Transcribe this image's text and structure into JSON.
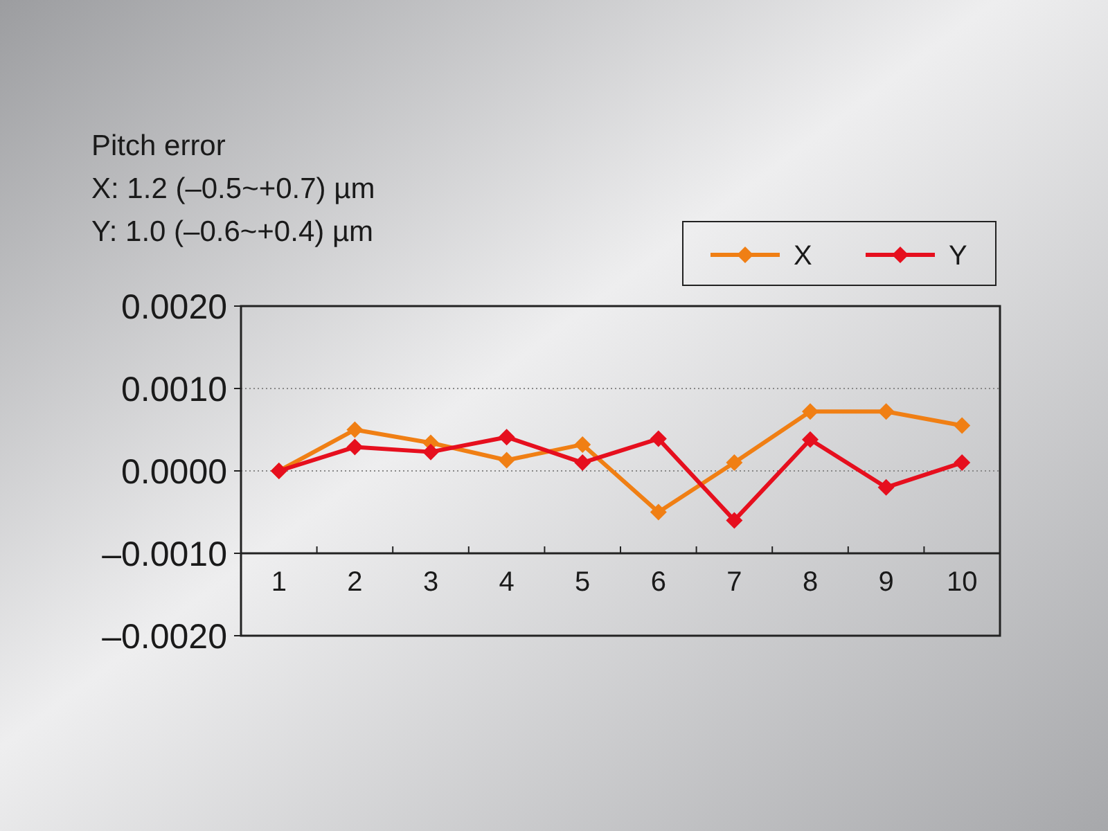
{
  "chart_data": {
    "type": "line",
    "title": "Pitch error",
    "annotations": [
      "X: 1.2 (–0.5~+0.7) µm",
      "Y: 1.0 (–0.6~+0.4) µm"
    ],
    "categories": [
      "1",
      "2",
      "3",
      "4",
      "5",
      "6",
      "7",
      "8",
      "9",
      "10"
    ],
    "series": [
      {
        "name": "X",
        "color": "#f07f14",
        "values": [
          0,
          0.0005,
          0.00034,
          0.00013,
          0.00032,
          -0.0005,
          0.0001,
          0.00072,
          0.00072,
          0.00055
        ]
      },
      {
        "name": "Y",
        "color": "#e60f1e",
        "values": [
          0,
          0.00029,
          0.00023,
          0.00041,
          0.0001,
          0.00039,
          -0.0006,
          0.00038,
          -0.0002,
          0.0001
        ]
      }
    ],
    "ylim": [
      -0.002,
      0.002
    ],
    "yticks": [
      {
        "value": 0.002,
        "label": "0.0020"
      },
      {
        "value": 0.001,
        "label": "0.0010"
      },
      {
        "value": 0,
        "label": "0.0000"
      },
      {
        "value": -0.001,
        "label": "–0.0010"
      },
      {
        "value": -0.002,
        "label": "–0.0020"
      }
    ],
    "grid": "y",
    "legend": "top right",
    "marker": "diamond",
    "line_style": "solid"
  }
}
